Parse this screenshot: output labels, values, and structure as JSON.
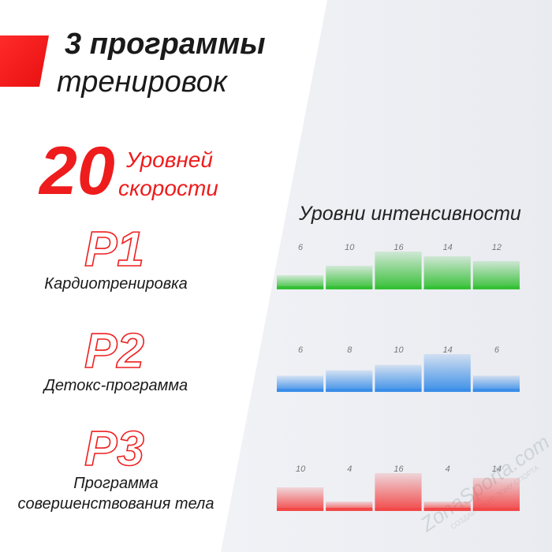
{
  "header": {
    "line1": "3 программы",
    "line2": "тренировок"
  },
  "speed": {
    "number": "20",
    "line1": "Уровней",
    "line2": "скорости"
  },
  "intensity_title": "Уровни интенсивности",
  "programs": [
    {
      "code": "P1",
      "label": [
        "Кардиотренировка"
      ],
      "chart": {
        "type": "bar",
        "values": [
          6,
          10,
          16,
          14,
          12
        ],
        "color": "#35c035"
      }
    },
    {
      "code": "P2",
      "label": [
        "Детокс-программа"
      ],
      "chart": {
        "type": "bar",
        "values": [
          6,
          8,
          10,
          14,
          6
        ],
        "color": "#3b8ee8"
      }
    },
    {
      "code": "P3",
      "label": [
        "Программа",
        "совершенствования тела"
      ],
      "chart": {
        "type": "bar",
        "values": [
          10,
          4,
          16,
          4,
          14
        ],
        "color": "#f24848"
      }
    }
  ],
  "watermark": {
    "brand": "ZonaSporta.com",
    "slogan": "СОЗДАЙ СВОЮ ЗОНУ СПОРТА"
  }
}
